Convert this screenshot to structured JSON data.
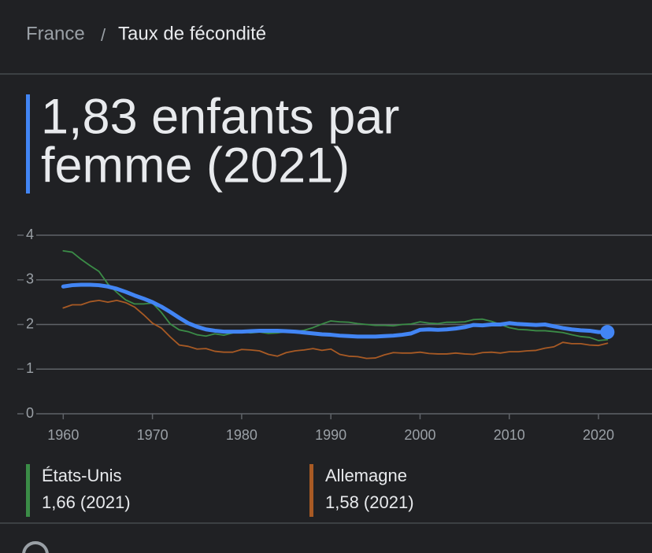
{
  "breadcrumb": {
    "parent": "France",
    "separator": "/",
    "current": "Taux de fécondité"
  },
  "headline": [
    "1,83 enfants par",
    "femme (2021)"
  ],
  "chart_data": {
    "type": "line",
    "x": [
      1960,
      1961,
      1962,
      1963,
      1964,
      1965,
      1966,
      1967,
      1968,
      1969,
      1970,
      1971,
      1972,
      1973,
      1974,
      1975,
      1976,
      1977,
      1978,
      1979,
      1980,
      1981,
      1982,
      1983,
      1984,
      1985,
      1986,
      1987,
      1988,
      1989,
      1990,
      1991,
      1992,
      1993,
      1994,
      1995,
      1996,
      1997,
      1998,
      1999,
      2000,
      2001,
      2002,
      2003,
      2004,
      2005,
      2006,
      2007,
      2008,
      2009,
      2010,
      2011,
      2012,
      2013,
      2014,
      2015,
      2016,
      2017,
      2018,
      2019,
      2020,
      2021
    ],
    "xlim": [
      1956,
      2026
    ],
    "xticks": [
      1960,
      1970,
      1980,
      1990,
      2000,
      2010,
      2020
    ],
    "ylim": [
      0,
      4
    ],
    "yticks": [
      0,
      1,
      2,
      3,
      4
    ],
    "grid": true,
    "series": [
      {
        "color": "#4285f4",
        "values": [
          2.85,
          2.88,
          2.89,
          2.89,
          2.88,
          2.85,
          2.8,
          2.73,
          2.65,
          2.58,
          2.5,
          2.4,
          2.28,
          2.15,
          2.03,
          1.95,
          1.89,
          1.86,
          1.84,
          1.84,
          1.84,
          1.85,
          1.86,
          1.86,
          1.86,
          1.85,
          1.84,
          1.82,
          1.8,
          1.78,
          1.77,
          1.75,
          1.74,
          1.73,
          1.73,
          1.73,
          1.74,
          1.75,
          1.77,
          1.8,
          1.88,
          1.89,
          1.88,
          1.89,
          1.91,
          1.94,
          1.99,
          1.98,
          2.0,
          2.0,
          2.03,
          2.01,
          2.0,
          1.99,
          2.0,
          1.96,
          1.92,
          1.89,
          1.87,
          1.86,
          1.83,
          1.83
        ]
      },
      {
        "name": "États-Unis",
        "label": "1,66 (2021)",
        "color": "#3b8c47",
        "values": [
          3.65,
          3.62,
          3.46,
          3.32,
          3.19,
          2.91,
          2.72,
          2.55,
          2.46,
          2.46,
          2.48,
          2.27,
          2.01,
          1.88,
          1.84,
          1.77,
          1.74,
          1.79,
          1.76,
          1.81,
          1.84,
          1.81,
          1.83,
          1.8,
          1.81,
          1.84,
          1.84,
          1.87,
          1.93,
          2.01,
          2.08,
          2.06,
          2.05,
          2.02,
          2.0,
          1.98,
          1.98,
          1.97,
          2.0,
          2.01,
          2.06,
          2.03,
          2.02,
          2.05,
          2.05,
          2.06,
          2.11,
          2.12,
          2.07,
          2.0,
          1.93,
          1.89,
          1.88,
          1.86,
          1.86,
          1.84,
          1.82,
          1.77,
          1.73,
          1.71,
          1.64,
          1.66
        ]
      },
      {
        "name": "Allemagne",
        "label": "1,58 (2021)",
        "color": "#a85a24",
        "values": [
          2.37,
          2.44,
          2.44,
          2.51,
          2.54,
          2.5,
          2.54,
          2.49,
          2.39,
          2.22,
          2.03,
          1.92,
          1.72,
          1.54,
          1.51,
          1.45,
          1.46,
          1.4,
          1.38,
          1.38,
          1.44,
          1.43,
          1.41,
          1.33,
          1.29,
          1.37,
          1.41,
          1.43,
          1.46,
          1.42,
          1.45,
          1.33,
          1.29,
          1.28,
          1.24,
          1.25,
          1.32,
          1.37,
          1.36,
          1.36,
          1.38,
          1.35,
          1.34,
          1.34,
          1.36,
          1.34,
          1.33,
          1.37,
          1.38,
          1.36,
          1.39,
          1.39,
          1.41,
          1.42,
          1.47,
          1.5,
          1.6,
          1.57,
          1.57,
          1.54,
          1.53,
          1.58
        ]
      }
    ]
  }
}
